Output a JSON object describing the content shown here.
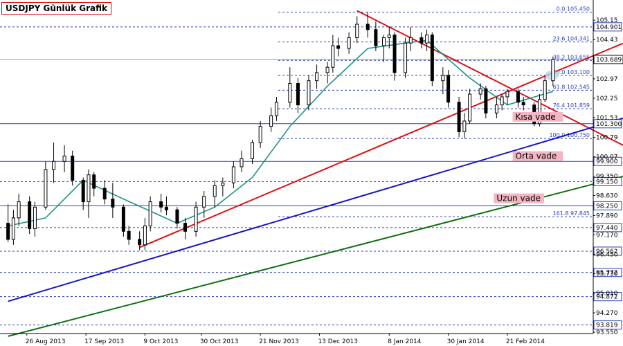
{
  "chart_data": {
    "type": "candlestick",
    "title": "USDJPY Günlük Grafik",
    "xlabel": "",
    "ylabel": "",
    "ylim": [
      93.5,
      105.9
    ],
    "x_ticks": [
      "26 Aug 2013",
      "17 Sep 2013",
      "9 Oct 2013",
      "30 Oct 2013",
      "21 Nov 2013",
      "13 Dec 2013",
      "8 Jan 2014",
      "30 Jan 2014",
      "21 Feb 2014"
    ],
    "y_ticks": [
      105.15,
      104.43,
      103.69,
      102.97,
      102.25,
      101.53,
      100.79,
      100.07,
      99.35,
      98.63,
      97.89,
      97.17,
      96.45,
      95.73,
      95.01,
      94.27,
      93.55
    ],
    "current_price": "103.689",
    "candles": [
      {
        "date": "2013-08-19",
        "o": 97.6,
        "h": 98.3,
        "l": 96.9,
        "c": 97.0
      },
      {
        "date": "2013-08-21",
        "o": 97.0,
        "h": 98.1,
        "l": 96.8,
        "c": 97.8
      },
      {
        "date": "2013-08-23",
        "o": 97.8,
        "h": 98.7,
        "l": 97.5,
        "c": 98.4
      },
      {
        "date": "2013-08-27",
        "o": 98.4,
        "h": 98.6,
        "l": 97.2,
        "c": 97.4
      },
      {
        "date": "2013-08-29",
        "o": 97.4,
        "h": 98.4,
        "l": 97.1,
        "c": 98.2
      },
      {
        "date": "2013-09-02",
        "o": 98.2,
        "h": 99.9,
        "l": 98.1,
        "c": 99.6
      },
      {
        "date": "2013-09-05",
        "o": 99.6,
        "h": 100.6,
        "l": 99.1,
        "c": 99.9
      },
      {
        "date": "2013-09-09",
        "o": 99.9,
        "h": 100.5,
        "l": 99.5,
        "c": 100.1
      },
      {
        "date": "2013-09-12",
        "o": 100.1,
        "h": 100.3,
        "l": 99.0,
        "c": 99.2
      },
      {
        "date": "2013-09-16",
        "o": 99.2,
        "h": 99.3,
        "l": 98.1,
        "c": 98.4
      },
      {
        "date": "2013-09-18",
        "o": 98.4,
        "h": 99.6,
        "l": 97.8,
        "c": 99.4
      },
      {
        "date": "2013-09-20",
        "o": 99.4,
        "h": 99.5,
        "l": 98.6,
        "c": 98.9
      },
      {
        "date": "2013-09-24",
        "o": 98.9,
        "h": 99.2,
        "l": 98.3,
        "c": 98.5
      },
      {
        "date": "2013-09-27",
        "o": 98.5,
        "h": 99.1,
        "l": 97.8,
        "c": 98.2
      },
      {
        "date": "2013-10-01",
        "o": 98.2,
        "h": 98.3,
        "l": 97.1,
        "c": 97.3
      },
      {
        "date": "2013-10-03",
        "o": 97.3,
        "h": 97.5,
        "l": 96.8,
        "c": 97.0
      },
      {
        "date": "2013-10-07",
        "o": 97.0,
        "h": 97.3,
        "l": 96.6,
        "c": 96.8
      },
      {
        "date": "2013-10-09",
        "o": 96.8,
        "h": 97.8,
        "l": 96.6,
        "c": 97.5
      },
      {
        "date": "2013-10-11",
        "o": 97.5,
        "h": 98.6,
        "l": 97.3,
        "c": 98.4
      },
      {
        "date": "2013-10-15",
        "o": 98.4,
        "h": 98.7,
        "l": 98.0,
        "c": 98.2
      },
      {
        "date": "2013-10-17",
        "o": 98.2,
        "h": 98.6,
        "l": 97.9,
        "c": 98.1
      },
      {
        "date": "2013-10-21",
        "o": 98.1,
        "h": 98.2,
        "l": 97.4,
        "c": 97.6
      },
      {
        "date": "2013-10-24",
        "o": 97.6,
        "h": 97.8,
        "l": 97.0,
        "c": 97.3
      },
      {
        "date": "2013-10-28",
        "o": 97.3,
        "h": 98.4,
        "l": 97.1,
        "c": 98.2
      },
      {
        "date": "2013-10-31",
        "o": 98.2,
        "h": 98.8,
        "l": 97.8,
        "c": 98.6
      },
      {
        "date": "2013-11-04",
        "o": 98.6,
        "h": 99.2,
        "l": 98.2,
        "c": 99.0
      },
      {
        "date": "2013-11-07",
        "o": 99.0,
        "h": 99.3,
        "l": 98.6,
        "c": 99.1
      },
      {
        "date": "2013-11-11",
        "o": 99.1,
        "h": 99.9,
        "l": 98.9,
        "c": 99.7
      },
      {
        "date": "2013-11-14",
        "o": 99.7,
        "h": 100.3,
        "l": 99.5,
        "c": 100.0
      },
      {
        "date": "2013-11-18",
        "o": 100.0,
        "h": 100.7,
        "l": 99.8,
        "c": 100.6
      },
      {
        "date": "2013-11-21",
        "o": 100.6,
        "h": 101.4,
        "l": 100.4,
        "c": 101.2
      },
      {
        "date": "2013-11-25",
        "o": 101.2,
        "h": 101.9,
        "l": 101.0,
        "c": 101.6
      },
      {
        "date": "2013-11-27",
        "o": 101.6,
        "h": 102.3,
        "l": 101.4,
        "c": 102.1
      },
      {
        "date": "2013-12-02",
        "o": 102.1,
        "h": 103.4,
        "l": 101.9,
        "c": 102.8
      },
      {
        "date": "2013-12-05",
        "o": 102.8,
        "h": 103.0,
        "l": 101.7,
        "c": 102.0
      },
      {
        "date": "2013-12-09",
        "o": 102.0,
        "h": 103.1,
        "l": 101.8,
        "c": 102.9
      },
      {
        "date": "2013-12-12",
        "o": 102.9,
        "h": 103.5,
        "l": 102.6,
        "c": 103.2
      },
      {
        "date": "2013-12-16",
        "o": 103.2,
        "h": 103.6,
        "l": 102.8,
        "c": 103.4
      },
      {
        "date": "2013-12-18",
        "o": 103.4,
        "h": 104.6,
        "l": 103.2,
        "c": 104.2
      },
      {
        "date": "2013-12-20",
        "o": 104.2,
        "h": 104.5,
        "l": 103.8,
        "c": 104.1
      },
      {
        "date": "2013-12-24",
        "o": 104.1,
        "h": 104.7,
        "l": 103.9,
        "c": 104.5
      },
      {
        "date": "2013-12-27",
        "o": 104.5,
        "h": 105.3,
        "l": 104.3,
        "c": 105.0
      },
      {
        "date": "2013-12-31",
        "o": 105.0,
        "h": 105.45,
        "l": 104.5,
        "c": 104.8
      },
      {
        "date": "2014-01-03",
        "o": 104.8,
        "h": 105.1,
        "l": 104.0,
        "c": 104.2
      },
      {
        "date": "2014-01-06",
        "o": 104.2,
        "h": 104.6,
        "l": 103.6,
        "c": 104.5
      },
      {
        "date": "2014-01-08",
        "o": 104.5,
        "h": 104.9,
        "l": 104.1,
        "c": 104.6
      },
      {
        "date": "2014-01-10",
        "o": 104.6,
        "h": 104.7,
        "l": 102.9,
        "c": 103.2
      },
      {
        "date": "2014-01-14",
        "o": 103.2,
        "h": 104.5,
        "l": 103.0,
        "c": 104.3
      },
      {
        "date": "2014-01-16",
        "o": 104.3,
        "h": 104.9,
        "l": 104.0,
        "c": 104.5
      },
      {
        "date": "2014-01-20",
        "o": 104.5,
        "h": 104.7,
        "l": 104.1,
        "c": 104.3
      },
      {
        "date": "2014-01-22",
        "o": 104.3,
        "h": 104.8,
        "l": 104.0,
        "c": 104.6
      },
      {
        "date": "2014-01-24",
        "o": 104.6,
        "h": 104.7,
        "l": 102.7,
        "c": 102.9
      },
      {
        "date": "2014-01-28",
        "o": 102.9,
        "h": 103.4,
        "l": 102.4,
        "c": 103.1
      },
      {
        "date": "2014-01-30",
        "o": 103.1,
        "h": 103.3,
        "l": 101.9,
        "c": 102.1
      },
      {
        "date": "2014-02-03",
        "o": 102.1,
        "h": 102.3,
        "l": 100.8,
        "c": 101.0
      },
      {
        "date": "2014-02-05",
        "o": 101.0,
        "h": 101.7,
        "l": 100.75,
        "c": 101.4
      },
      {
        "date": "2014-02-07",
        "o": 101.4,
        "h": 102.6,
        "l": 101.3,
        "c": 102.4
      },
      {
        "date": "2014-02-11",
        "o": 102.4,
        "h": 102.8,
        "l": 102.2,
        "c": 102.6
      },
      {
        "date": "2014-02-13",
        "o": 102.6,
        "h": 102.7,
        "l": 101.5,
        "c": 101.7
      },
      {
        "date": "2014-02-17",
        "o": 101.7,
        "h": 102.3,
        "l": 101.5,
        "c": 102.0
      },
      {
        "date": "2014-02-19",
        "o": 102.0,
        "h": 102.4,
        "l": 101.8,
        "c": 102.3
      },
      {
        "date": "2014-02-21",
        "o": 102.3,
        "h": 102.6,
        "l": 102.0,
        "c": 102.5
      },
      {
        "date": "2014-02-25",
        "o": 102.5,
        "h": 102.6,
        "l": 101.9,
        "c": 102.1
      },
      {
        "date": "2014-02-27",
        "o": 102.1,
        "h": 102.3,
        "l": 101.8,
        "c": 102.0
      },
      {
        "date": "2014-03-03",
        "o": 102.0,
        "h": 102.1,
        "l": 101.2,
        "c": 101.3
      },
      {
        "date": "2014-03-05",
        "o": 101.3,
        "h": 102.4,
        "l": 101.2,
        "c": 102.2
      },
      {
        "date": "2014-03-07",
        "o": 102.2,
        "h": 103.1,
        "l": 102.1,
        "c": 102.9
      },
      {
        "date": "2014-03-10",
        "o": 102.9,
        "h": 103.8,
        "l": 102.7,
        "c": 103.69
      }
    ],
    "series": [
      {
        "name": "",
        "color": "#1e9385",
        "kind": "moving-average",
        "points": [
          [
            "2013-08-19",
            97.5
          ],
          [
            "2013-09-02",
            97.8
          ],
          [
            "2013-09-16",
            99.2
          ],
          [
            "2013-10-01",
            98.5
          ],
          [
            "2013-10-21",
            97.6
          ],
          [
            "2013-11-04",
            98.2
          ],
          [
            "2013-11-18",
            99.3
          ],
          [
            "2013-12-02",
            101.2
          ],
          [
            "2013-12-16",
            102.7
          ],
          [
            "2013-12-31",
            104.1
          ],
          [
            "2014-01-14",
            104.3
          ],
          [
            "2014-01-22",
            104.4
          ],
          [
            "2014-02-07",
            103.0
          ],
          [
            "2014-02-21",
            102.0
          ],
          [
            "2014-03-10",
            102.5
          ]
        ]
      }
    ],
    "fib_levels": [
      {
        "label": "0.0 105.450",
        "value": 105.45
      },
      {
        "label": "23.6 104.341",
        "value": 104.341
      },
      {
        "label": "38.2 103.655",
        "value": 103.655
      },
      {
        "label": "50.0 103.100",
        "value": 103.1
      },
      {
        "label": "61.8 102.545",
        "value": 102.545
      },
      {
        "label": "76.4 101.859",
        "value": 101.859
      },
      {
        "label": "100.0 100.750",
        "value": 100.75
      },
      {
        "label": "161.8 97.845",
        "value": 97.845
      }
    ],
    "support_resistance": [
      "104.901",
      "101.300",
      "99.900",
      "99.150",
      "98.250",
      "97.440",
      "96.562",
      "95.772",
      "94.872",
      "93.819"
    ],
    "trendlines": [
      {
        "name": "Kısa vade",
        "color": "#e01010",
        "points": [
          [
            "2013-10-07",
            96.7
          ],
          [
            "2014-03-10",
            103.2
          ],
          [
            "2014-04-15",
            104.7
          ]
        ]
      },
      {
        "name": "",
        "color": "#e01010",
        "points": [
          [
            "2013-12-27",
            105.5
          ],
          [
            "2014-04-15",
            100.0
          ]
        ]
      },
      {
        "name": "Orta vade",
        "color": "#1515cc",
        "points": [
          [
            "2013-08-19",
            94.7
          ],
          [
            "2014-04-15",
            101.8
          ]
        ]
      },
      {
        "name": "Uzun vade",
        "color": "#107010",
        "points": [
          [
            "2013-08-19",
            93.4
          ],
          [
            "2014-04-15",
            99.6
          ]
        ]
      }
    ],
    "annotations": [
      "Kısa vade",
      "Orta vade",
      "Uzun vade"
    ],
    "grid": false,
    "colors": {
      "axis": "#000000",
      "fib": "#2a3fbf",
      "hline": "#2a3fbf",
      "candle": "#000000",
      "price_tag": "#ffffff",
      "highlight": "#b7d8e8",
      "label_bg": "#f4b6c2"
    }
  }
}
